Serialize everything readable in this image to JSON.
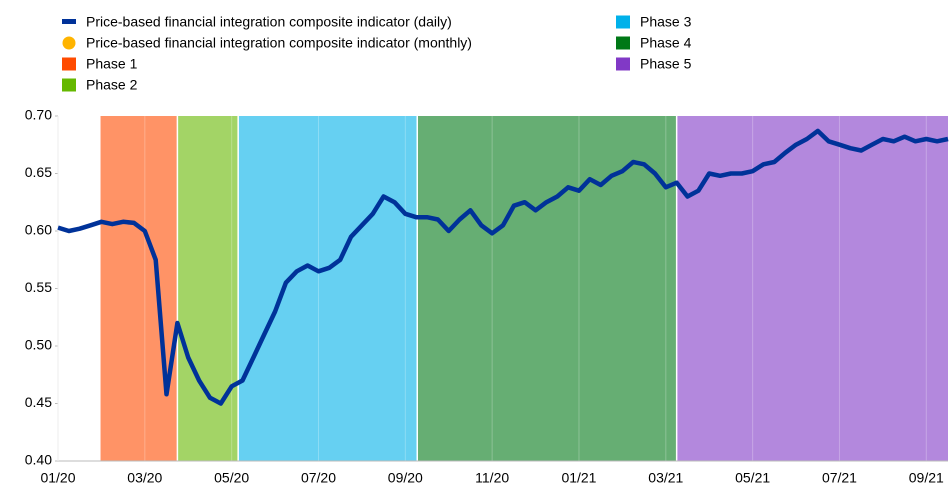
{
  "chart_data": {
    "type": "line",
    "categories": [
      "01/20",
      null,
      null,
      null,
      null,
      null,
      null,
      null,
      "03/20",
      null,
      null,
      null,
      null,
      null,
      null,
      null,
      "05/20",
      null,
      null,
      null,
      null,
      null,
      null,
      null,
      "07/20",
      null,
      null,
      null,
      null,
      null,
      null,
      null,
      "09/20",
      null,
      null,
      null,
      null,
      null,
      null,
      null,
      "11/20",
      null,
      null,
      null,
      null,
      null,
      null,
      null,
      "01/21",
      null,
      null,
      null,
      null,
      null,
      null,
      null,
      "03/21",
      null,
      null,
      null,
      null,
      null,
      null,
      null,
      "05/21",
      null,
      null,
      null,
      null,
      null,
      null,
      null,
      "07/21",
      null,
      null,
      null,
      null,
      null,
      null,
      null,
      "09/21",
      null,
      null
    ],
    "series": [
      {
        "name": "Price-based financial integration composite indicator (daily)",
        "color": "#003299",
        "values": [
          0.603,
          0.6,
          0.602,
          0.605,
          0.608,
          0.606,
          0.608,
          0.607,
          0.6,
          0.575,
          0.458,
          0.52,
          0.49,
          0.47,
          0.455,
          0.45,
          0.465,
          0.47,
          0.49,
          0.51,
          0.53,
          0.555,
          0.565,
          0.57,
          0.565,
          0.568,
          0.575,
          0.595,
          0.605,
          0.615,
          0.63,
          0.625,
          0.615,
          0.612,
          0.612,
          0.61,
          0.6,
          0.61,
          0.618,
          0.605,
          0.598,
          0.605,
          0.622,
          0.625,
          0.618,
          0.625,
          0.63,
          0.638,
          0.635,
          0.645,
          0.64,
          0.648,
          0.652,
          0.66,
          0.658,
          0.65,
          0.638,
          0.642,
          0.63,
          0.635,
          0.65,
          0.648,
          0.65,
          0.65,
          0.652,
          0.658,
          0.66,
          0.668,
          0.675,
          0.68,
          0.687,
          0.678,
          0.675,
          0.672,
          0.67,
          0.675,
          0.68,
          0.678,
          0.682,
          0.678,
          0.68,
          0.678,
          0.68
        ]
      },
      {
        "name": "Price-based financial integration composite indicator (monthly)",
        "color": "#ffb400",
        "values": [
          null,
          null,
          null,
          null,
          null,
          null,
          null,
          null,
          null,
          null,
          null,
          null,
          null,
          null,
          null,
          null,
          null,
          null,
          null,
          null,
          null,
          null,
          null,
          null,
          null,
          null,
          null,
          null,
          null,
          null,
          null,
          null,
          null,
          null,
          null,
          null,
          null,
          null,
          null,
          null,
          null,
          null,
          null,
          null,
          null,
          null,
          null,
          null,
          null,
          null,
          null,
          null,
          null,
          null,
          null,
          null,
          null,
          null,
          null,
          null,
          null,
          null,
          null,
          null,
          null,
          null,
          null,
          null,
          null,
          null,
          null,
          null,
          null,
          null,
          null,
          null,
          null,
          null,
          null,
          null,
          null,
          null,
          null
        ]
      }
    ],
    "phases": [
      {
        "name": "Phase 1",
        "color": "#ff4b00",
        "start": 3.85,
        "end": 11
      },
      {
        "name": "Phase 2",
        "color": "#65b800",
        "start": 11,
        "end": 16.6
      },
      {
        "name": "Phase 3",
        "color": "#00b1ea",
        "start": 16.6,
        "end": 33.1
      },
      {
        "name": "Phase 4",
        "color": "#007816",
        "start": 33.1,
        "end": 57
      },
      {
        "name": "Phase 5",
        "color": "#8139c6",
        "start": 57,
        "end": 82
      }
    ],
    "ylim": [
      0.4,
      0.7
    ],
    "yticks": [
      {
        "value": 0.4,
        "label": "0.40"
      },
      {
        "value": 0.45,
        "label": "0.45"
      },
      {
        "value": 0.5,
        "label": "0.50"
      },
      {
        "value": 0.55,
        "label": "0.55"
      },
      {
        "value": 0.6,
        "label": "0.60"
      },
      {
        "value": 0.65,
        "label": "0.65"
      },
      {
        "value": 0.7,
        "label": "0.70"
      }
    ]
  }
}
